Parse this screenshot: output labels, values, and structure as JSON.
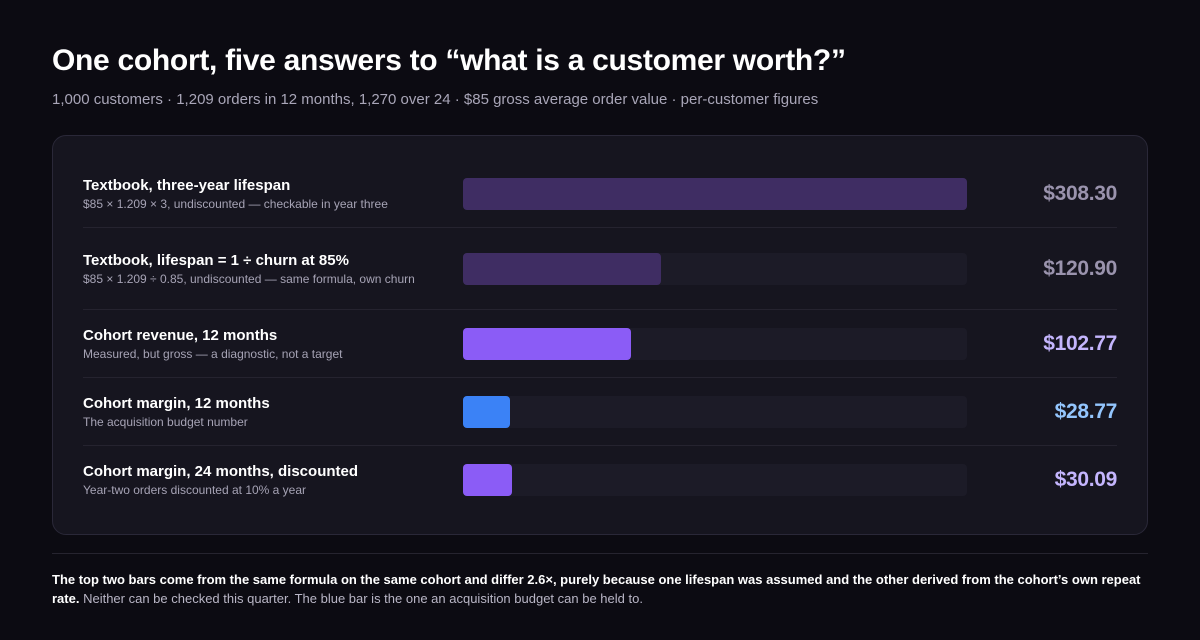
{
  "header": {
    "title": "One cohort, five answers to “what is a customer worth?”",
    "subtitle": "1,000 customers · 1,209 orders in 12 months, 1,270 over 24 · $85 gross average order value · per-customer figures"
  },
  "chart_data": {
    "type": "bar",
    "orientation": "horizontal",
    "xlim": [
      0,
      308.3
    ],
    "unit": "$",
    "categories": [
      "Textbook, three-year lifespan",
      "Textbook, lifespan = 1 ÷ churn at 85%",
      "Cohort revenue, 12 months",
      "Cohort margin, 12 months",
      "Cohort margin, 24 months, discounted"
    ],
    "values": [
      308.3,
      120.9,
      102.77,
      28.77,
      30.09
    ],
    "rows": [
      {
        "label": "Textbook, three-year lifespan",
        "note": "$85 × 1.209 × 3, undiscounted — checkable in year three",
        "value": 308.3,
        "value_label": "$308.30",
        "bar_color": "#3f2d63",
        "value_color": "#9a93ad"
      },
      {
        "label": "Textbook, lifespan = 1 ÷ churn at 85%",
        "note": "$85 × 1.209 ÷ 0.85, undiscounted — same formula, own churn",
        "value": 120.9,
        "value_label": "$120.90",
        "bar_color": "#3f2d63",
        "value_color": "#9a93ad"
      },
      {
        "label": "Cohort revenue, 12 months",
        "note": "Measured, but gross — a diagnostic, not a target",
        "value": 102.77,
        "value_label": "$102.77",
        "bar_color": "#8b5cf6",
        "value_color": "#c4b5fd"
      },
      {
        "label": "Cohort margin, 12 months",
        "note": "The acquisition budget number",
        "value": 28.77,
        "value_label": "$28.77",
        "bar_color": "#3b82f6",
        "value_color": "#93c5fd"
      },
      {
        "label": "Cohort margin, 24 months, discounted",
        "note": "Year-two orders discounted at 10% a year",
        "value": 30.09,
        "value_label": "$30.09",
        "bar_color": "#8b5cf6",
        "value_color": "#c4b5fd"
      }
    ]
  },
  "footnote": {
    "bold": "The top two bars come from the same formula on the same cohort and differ 2.6×, purely because one lifespan was assumed and the other derived from the cohort’s own repeat rate.",
    "rest": " Neither can be checked this quarter. The blue bar is the one an acquisition budget can be held to."
  }
}
